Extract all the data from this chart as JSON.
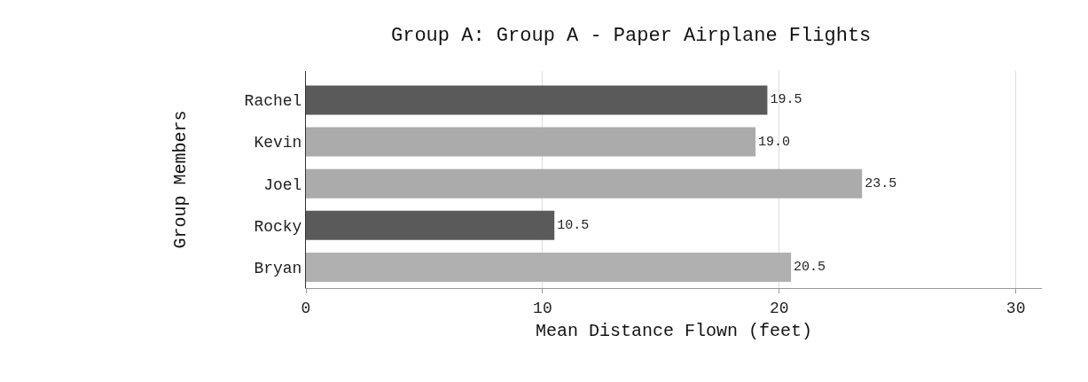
{
  "chart_data": {
    "type": "bar",
    "orientation": "horizontal",
    "title": "Group A: Group A - Paper Airplane Flights",
    "xlabel": "Mean Distance Flown (feet)",
    "ylabel": "Group Members",
    "categories": [
      "Rachel",
      "Kevin",
      "Joel",
      "Rocky",
      "Bryan"
    ],
    "values": [
      19.5,
      19.0,
      23.5,
      10.5,
      20.5
    ],
    "value_labels": [
      "19.5",
      "19.0",
      "23.5",
      "10.5",
      "20.5"
    ],
    "colors": [
      "#5a5a5a",
      "#ababab",
      "#ababab",
      "#5a5a5a",
      "#b0b0b0"
    ],
    "xlim": [
      0,
      31.1
    ],
    "xticks": [
      0,
      10,
      20,
      30
    ],
    "grid": "x"
  }
}
